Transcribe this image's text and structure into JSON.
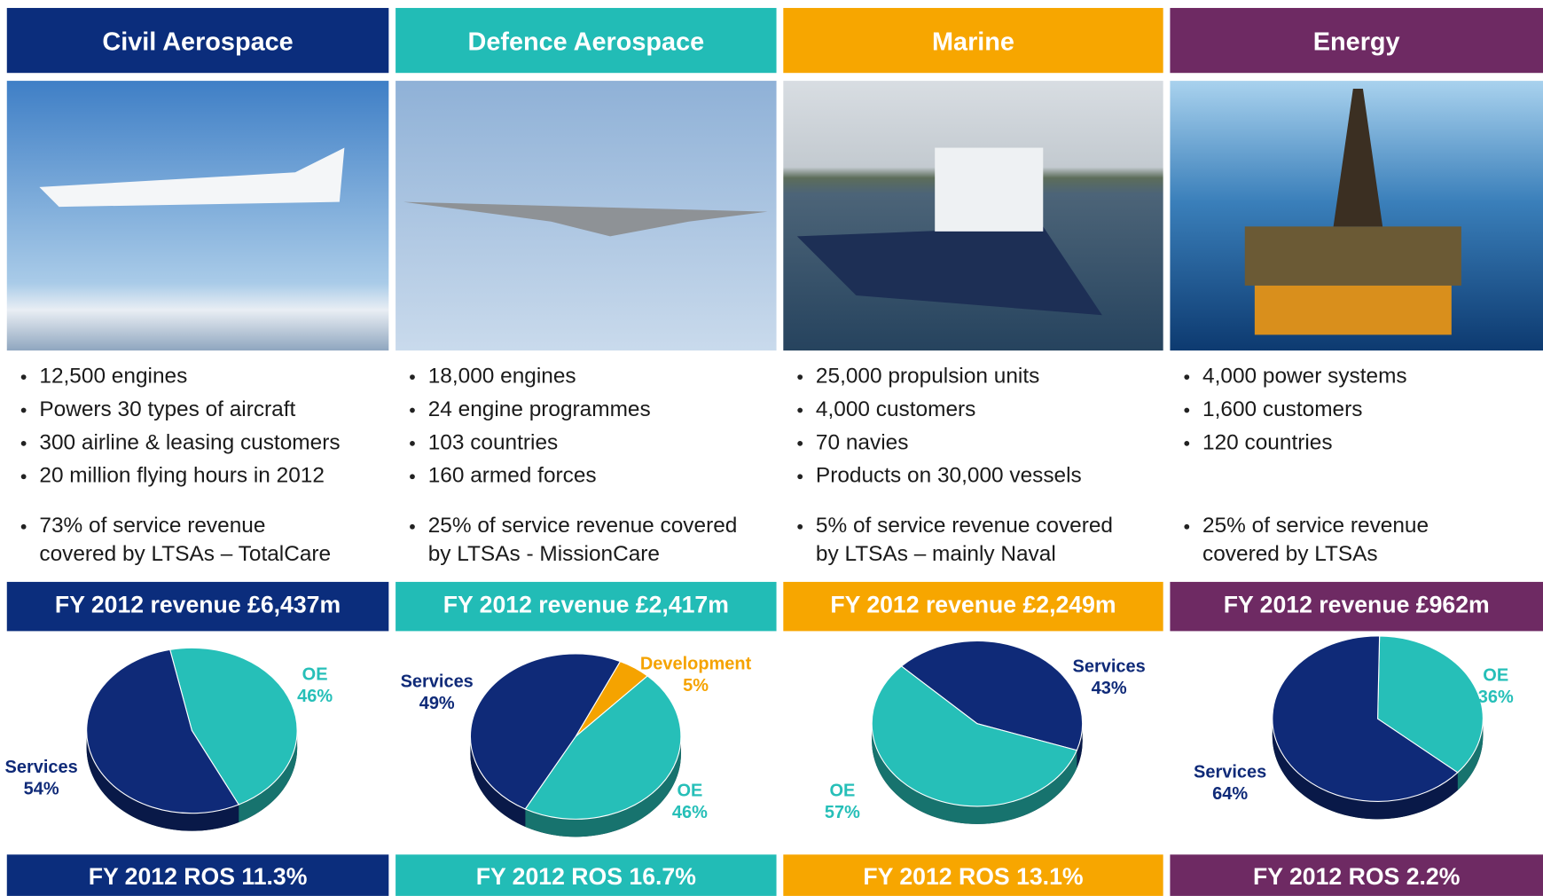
{
  "columns": [
    {
      "header": "Civil Aerospace",
      "color": "#0b2d7c",
      "bullets": [
        "12,500 engines",
        "Powers 30 types of aircraft",
        "300 airline & leasing customers",
        "20 million flying hours in 2012"
      ],
      "ltsa": [
        "73% of service revenue",
        "covered by LTSAs – TotalCare"
      ],
      "revenue": "FY 2012 revenue  £6,437m",
      "ros": "FY 2012 ROS 11.3%"
    },
    {
      "header": "Defence Aerospace",
      "color": "#22bcb6",
      "bullets": [
        "18,000 engines",
        "24 engine programmes",
        "103 countries",
        "160 armed forces"
      ],
      "ltsa": [
        "25% of service revenue covered",
        "by LTSAs - MissionCare"
      ],
      "revenue": "FY 2012 revenue  £2,417m",
      "ros": "FY 2012 ROS 16.7%"
    },
    {
      "header": "Marine",
      "color": "#f7a600",
      "bullets": [
        "25,000 propulsion units",
        "4,000 customers",
        "70 navies",
        "Products on 30,000 vessels"
      ],
      "ltsa": [
        "5% of service revenue covered",
        "by LTSAs – mainly Naval"
      ],
      "revenue": "FY 2012 revenue  £2,249m",
      "ros": "FY 2012 ROS 13.1%"
    },
    {
      "header": "Energy",
      "color": "#6e2a63",
      "bullets": [
        "4,000 power systems",
        "1,600 customers",
        "120 countries"
      ],
      "ltsa": [
        "25% of service revenue",
        "covered by LTSAs"
      ],
      "revenue": "FY 2012 revenue  £962m",
      "ros": "FY 2012 ROS 2.2%"
    }
  ],
  "chart_data": [
    {
      "type": "pie",
      "categories": [
        "OE",
        "Services"
      ],
      "values": [
        46,
        54
      ],
      "value_labels": [
        "46%",
        "54%"
      ],
      "colors": [
        "#26bfb8",
        "#0f2a78"
      ]
    },
    {
      "type": "pie",
      "categories": [
        "Development",
        "OE",
        "Services"
      ],
      "values": [
        5,
        46,
        49
      ],
      "value_labels": [
        "5%",
        "46%",
        "49%"
      ],
      "colors": [
        "#f5a300",
        "#26bfb8",
        "#0f2a78"
      ]
    },
    {
      "type": "pie",
      "categories": [
        "Services",
        "OE"
      ],
      "values": [
        43,
        57
      ],
      "value_labels": [
        "43%",
        "57%"
      ],
      "colors": [
        "#0f2a78",
        "#26bfb8"
      ]
    },
    {
      "type": "pie",
      "categories": [
        "OE",
        "Services"
      ],
      "values": [
        36,
        64
      ],
      "value_labels": [
        "36%",
        "64%"
      ],
      "colors": [
        "#26bfb8",
        "#0f2a78"
      ]
    }
  ]
}
